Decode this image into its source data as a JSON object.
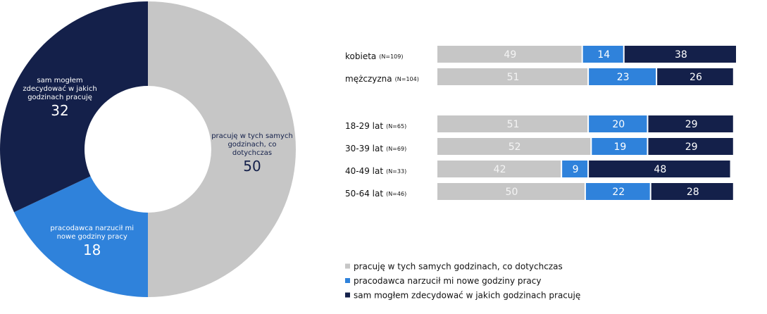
{
  "chart_data": [
    {
      "type": "donut",
      "categories": [
        "pracuję w tych samych godzinach, co dotychczas",
        "pracodawca narzucił mi nowe godziny pracy",
        "sam mogłem zdecydować w jakich godzinach pracuję"
      ],
      "values": [
        50,
        18,
        32
      ],
      "colors": [
        "#c6c6c6",
        "#2f82db",
        "#14204a"
      ]
    },
    {
      "type": "stacked-bar-horizontal",
      "categories": [
        "kobieta",
        "mężczyzna",
        "18-29 lat",
        "30-39 lat",
        "40-49 lat",
        "50-64 lat"
      ],
      "category_notes": [
        "(N=109)",
        "(N=104)",
        "(N=65)",
        "(N=69)",
        "(N=33)",
        "(N=46)"
      ],
      "series": [
        {
          "name": "pracuję w tych samych godzinach, co dotychczas",
          "color": "#c6c6c6",
          "values": [
            49,
            51,
            51,
            52,
            42,
            50
          ]
        },
        {
          "name": "pracodawca narzucił mi nowe godziny pracy",
          "color": "#2f82db",
          "values": [
            14,
            23,
            20,
            19,
            9,
            22
          ]
        },
        {
          "name": "sam mogłem zdecydować w jakich godzinach pracuję",
          "color": "#14204a",
          "values": [
            38,
            26,
            29,
            29,
            48,
            28
          ]
        }
      ],
      "xlim": [
        0,
        101
      ]
    }
  ]
}
